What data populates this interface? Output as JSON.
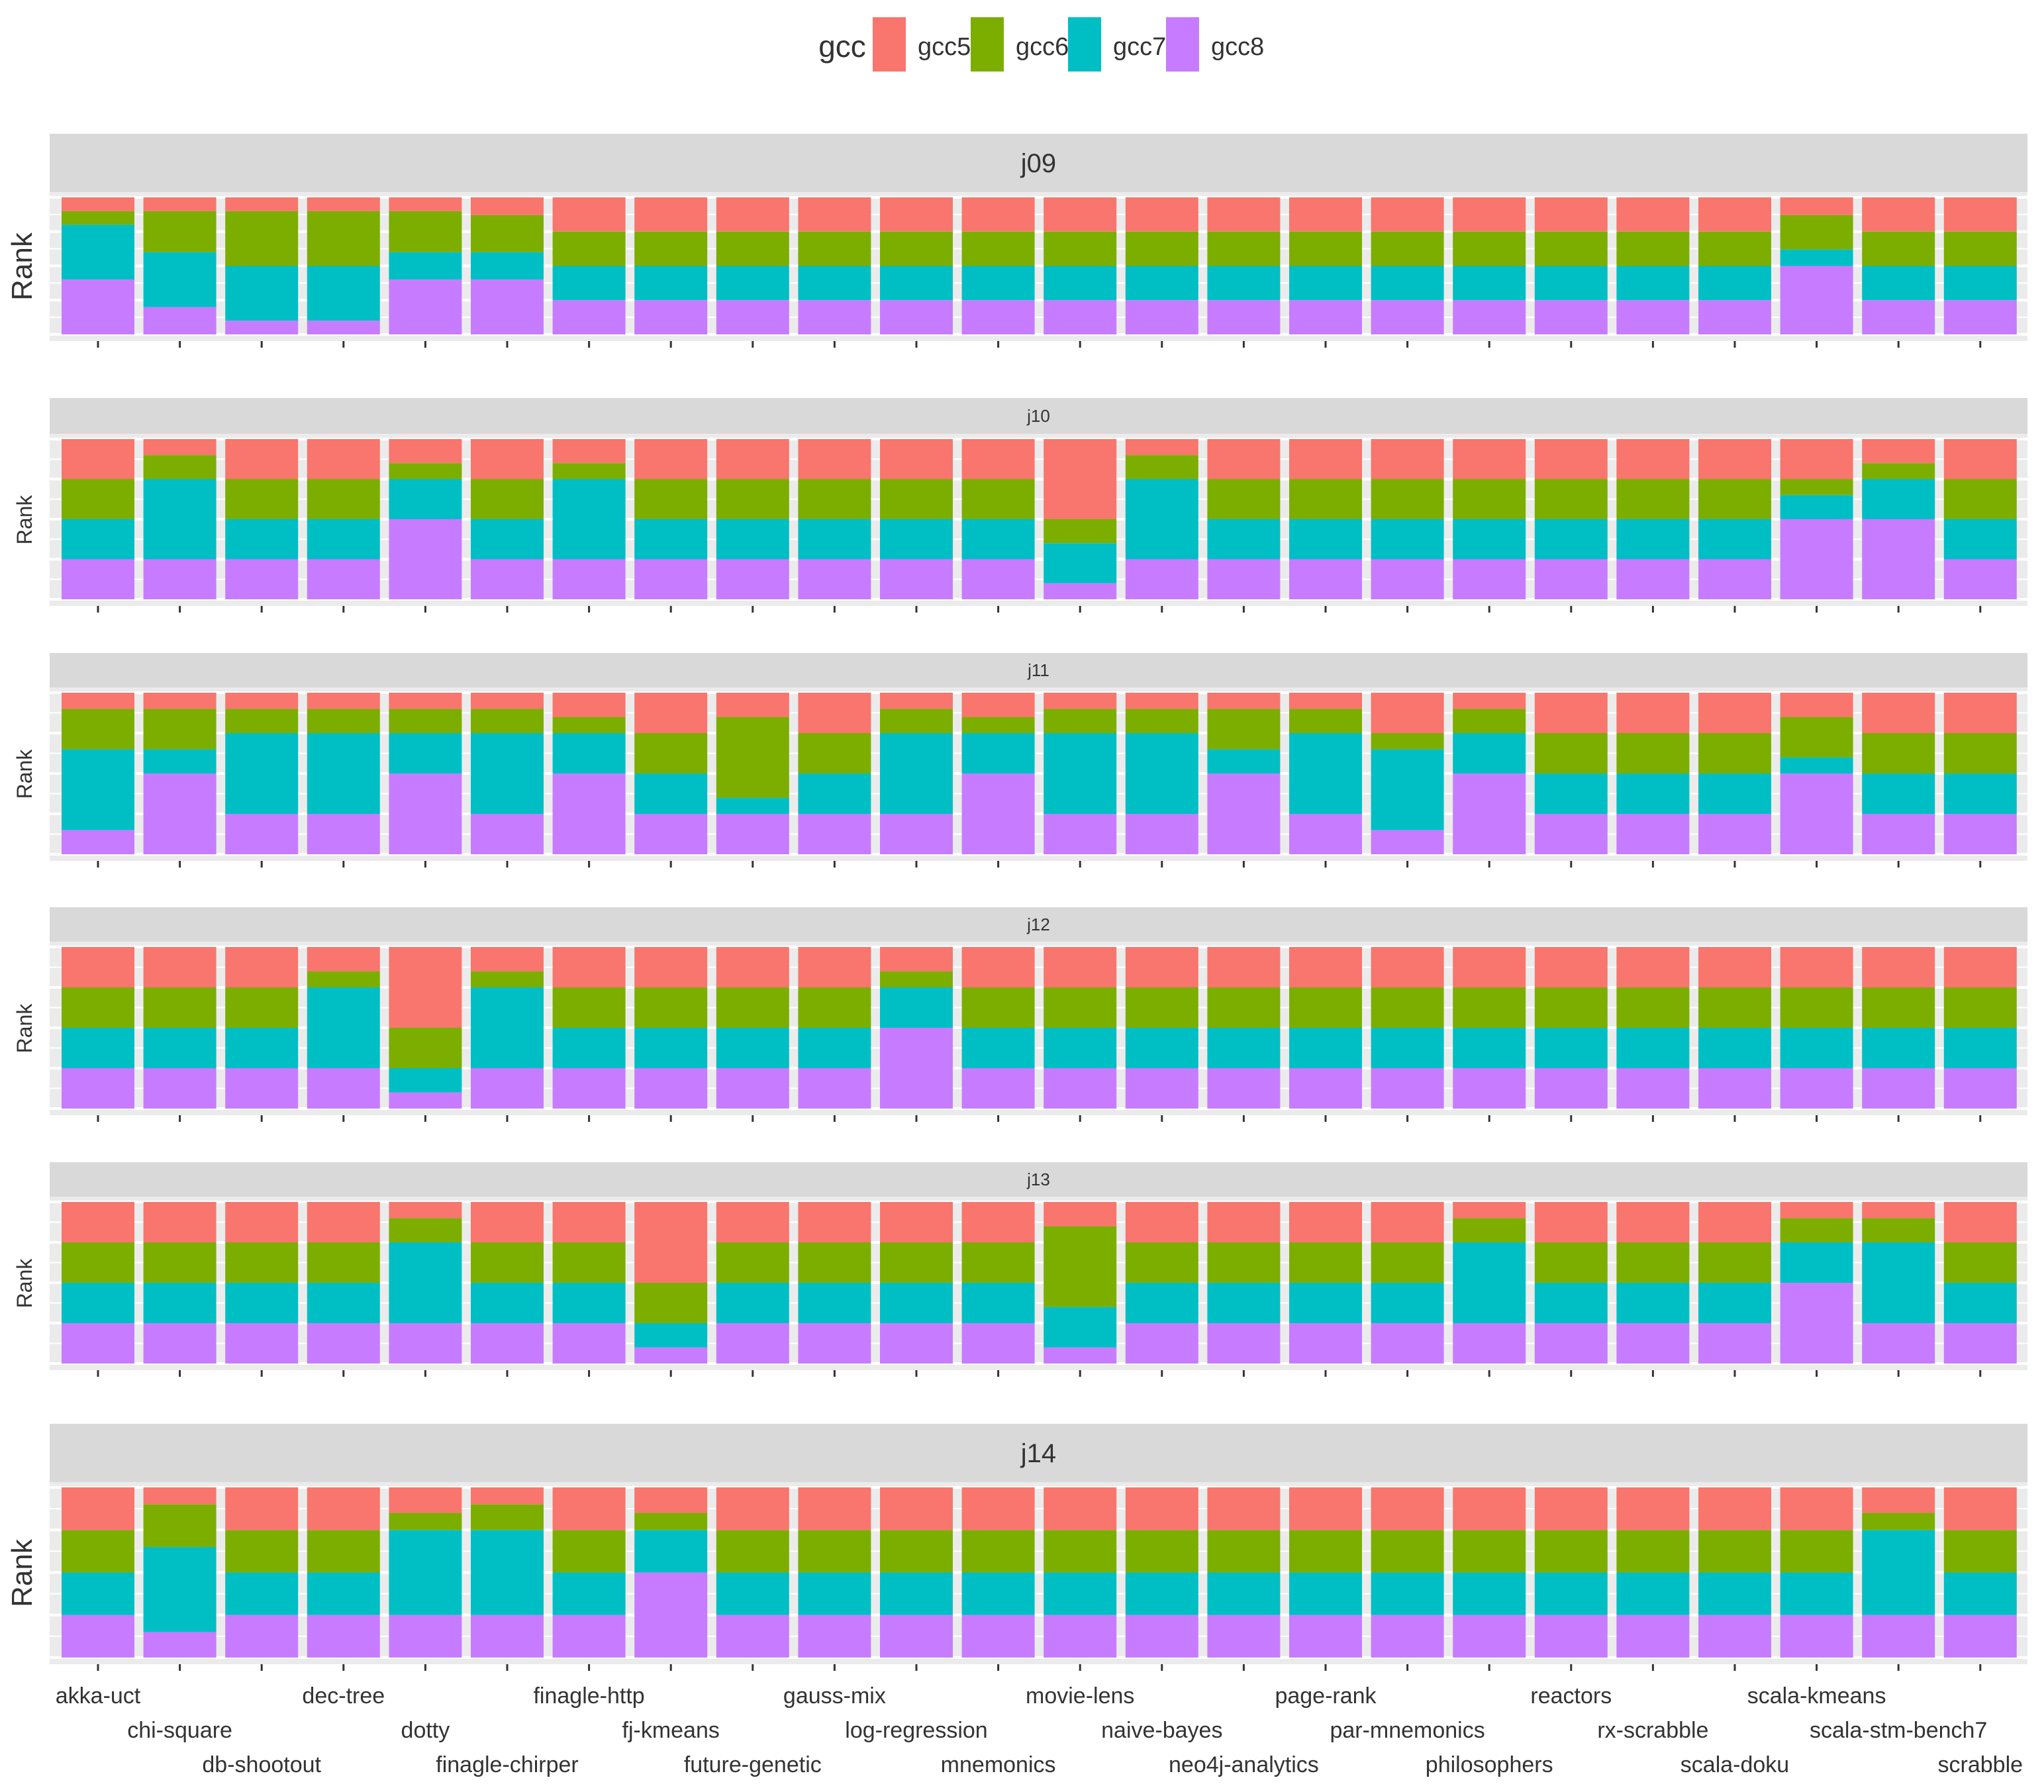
{
  "chart_data": {
    "type": "bar",
    "stacked": true,
    "facet_direction": "rows",
    "legend": {
      "title": "gcc",
      "position": "top"
    },
    "ylabel": "Rank",
    "ylim": [
      0,
      1
    ],
    "grid": true,
    "categories": [
      "akka-uct",
      "chi-square",
      "db-shootout",
      "dec-tree",
      "dotty",
      "finagle-chirper",
      "finagle-http",
      "fj-kmeans",
      "future-genetic",
      "gauss-mix",
      "log-regression",
      "mnemonics",
      "movie-lens",
      "naive-bayes",
      "neo4j-analytics",
      "page-rank",
      "par-mnemonics",
      "philosophers",
      "reactors",
      "rx-scrabble",
      "scala-doku",
      "scala-kmeans",
      "scala-stm-bench7",
      "scrabble"
    ],
    "series": [
      {
        "name": "gcc5",
        "color": "#F8766D"
      },
      {
        "name": "gcc6",
        "color": "#7CAE00"
      },
      {
        "name": "gcc7",
        "color": "#00BFC4"
      },
      {
        "name": "gcc8",
        "color": "#C77CFF"
      }
    ],
    "panels": [
      {
        "title": "j09",
        "values": [
          [
            0.1,
            0.1,
            0.4,
            0.4
          ],
          [
            0.1,
            0.3,
            0.4,
            0.2
          ],
          [
            0.1,
            0.4,
            0.4,
            0.1
          ],
          [
            0.1,
            0.4,
            0.4,
            0.1
          ],
          [
            0.1,
            0.3,
            0.2,
            0.4
          ],
          [
            0.13,
            0.27,
            0.2,
            0.4
          ],
          [
            0.25,
            0.25,
            0.25,
            0.25
          ],
          [
            0.25,
            0.25,
            0.25,
            0.25
          ],
          [
            0.25,
            0.25,
            0.25,
            0.25
          ],
          [
            0.25,
            0.25,
            0.25,
            0.25
          ],
          [
            0.25,
            0.25,
            0.25,
            0.25
          ],
          [
            0.25,
            0.25,
            0.25,
            0.25
          ],
          [
            0.25,
            0.25,
            0.25,
            0.25
          ],
          [
            0.25,
            0.25,
            0.25,
            0.25
          ],
          [
            0.25,
            0.25,
            0.25,
            0.25
          ],
          [
            0.25,
            0.25,
            0.25,
            0.25
          ],
          [
            0.25,
            0.25,
            0.25,
            0.25
          ],
          [
            0.25,
            0.25,
            0.25,
            0.25
          ],
          [
            0.25,
            0.25,
            0.25,
            0.25
          ],
          [
            0.25,
            0.25,
            0.25,
            0.25
          ],
          [
            0.25,
            0.25,
            0.25,
            0.25
          ],
          [
            0.13,
            0.25,
            0.12,
            0.5
          ],
          [
            0.25,
            0.25,
            0.25,
            0.25
          ],
          [
            0.25,
            0.25,
            0.25,
            0.25
          ]
        ]
      },
      {
        "title": "j10",
        "values": [
          [
            0.25,
            0.25,
            0.25,
            0.25
          ],
          [
            0.1,
            0.15,
            0.5,
            0.25
          ],
          [
            0.25,
            0.25,
            0.25,
            0.25
          ],
          [
            0.25,
            0.25,
            0.25,
            0.25
          ],
          [
            0.15,
            0.1,
            0.25,
            0.5
          ],
          [
            0.25,
            0.25,
            0.25,
            0.25
          ],
          [
            0.15,
            0.1,
            0.5,
            0.25
          ],
          [
            0.25,
            0.25,
            0.25,
            0.25
          ],
          [
            0.25,
            0.25,
            0.25,
            0.25
          ],
          [
            0.25,
            0.25,
            0.25,
            0.25
          ],
          [
            0.25,
            0.25,
            0.25,
            0.25
          ],
          [
            0.25,
            0.25,
            0.25,
            0.25
          ],
          [
            0.5,
            0.15,
            0.25,
            0.1
          ],
          [
            0.1,
            0.15,
            0.5,
            0.25
          ],
          [
            0.25,
            0.25,
            0.25,
            0.25
          ],
          [
            0.25,
            0.25,
            0.25,
            0.25
          ],
          [
            0.25,
            0.25,
            0.25,
            0.25
          ],
          [
            0.25,
            0.25,
            0.25,
            0.25
          ],
          [
            0.25,
            0.25,
            0.25,
            0.25
          ],
          [
            0.25,
            0.25,
            0.25,
            0.25
          ],
          [
            0.25,
            0.25,
            0.25,
            0.25
          ],
          [
            0.25,
            0.1,
            0.15,
            0.5
          ],
          [
            0.15,
            0.1,
            0.25,
            0.5
          ],
          [
            0.25,
            0.25,
            0.25,
            0.25
          ]
        ]
      },
      {
        "title": "j11",
        "values": [
          [
            0.1,
            0.25,
            0.5,
            0.15
          ],
          [
            0.1,
            0.25,
            0.15,
            0.5
          ],
          [
            0.1,
            0.15,
            0.5,
            0.25
          ],
          [
            0.1,
            0.15,
            0.5,
            0.25
          ],
          [
            0.1,
            0.15,
            0.25,
            0.5
          ],
          [
            0.1,
            0.15,
            0.5,
            0.25
          ],
          [
            0.15,
            0.1,
            0.25,
            0.5
          ],
          [
            0.25,
            0.25,
            0.25,
            0.25
          ],
          [
            0.15,
            0.5,
            0.1,
            0.25
          ],
          [
            0.25,
            0.25,
            0.25,
            0.25
          ],
          [
            0.1,
            0.15,
            0.5,
            0.25
          ],
          [
            0.15,
            0.1,
            0.25,
            0.5
          ],
          [
            0.1,
            0.15,
            0.5,
            0.25
          ],
          [
            0.1,
            0.15,
            0.5,
            0.25
          ],
          [
            0.1,
            0.25,
            0.15,
            0.5
          ],
          [
            0.1,
            0.15,
            0.5,
            0.25
          ],
          [
            0.25,
            0.1,
            0.5,
            0.15
          ],
          [
            0.1,
            0.15,
            0.25,
            0.5
          ],
          [
            0.25,
            0.25,
            0.25,
            0.25
          ],
          [
            0.25,
            0.25,
            0.25,
            0.25
          ],
          [
            0.25,
            0.25,
            0.25,
            0.25
          ],
          [
            0.15,
            0.25,
            0.1,
            0.5
          ],
          [
            0.25,
            0.25,
            0.25,
            0.25
          ],
          [
            0.25,
            0.25,
            0.25,
            0.25
          ]
        ]
      },
      {
        "title": "j12",
        "values": [
          [
            0.25,
            0.25,
            0.25,
            0.25
          ],
          [
            0.25,
            0.25,
            0.25,
            0.25
          ],
          [
            0.25,
            0.25,
            0.25,
            0.25
          ],
          [
            0.15,
            0.1,
            0.5,
            0.25
          ],
          [
            0.5,
            0.25,
            0.15,
            0.1
          ],
          [
            0.15,
            0.1,
            0.5,
            0.25
          ],
          [
            0.25,
            0.25,
            0.25,
            0.25
          ],
          [
            0.25,
            0.25,
            0.25,
            0.25
          ],
          [
            0.25,
            0.25,
            0.25,
            0.25
          ],
          [
            0.25,
            0.25,
            0.25,
            0.25
          ],
          [
            0.15,
            0.1,
            0.25,
            0.5
          ],
          [
            0.25,
            0.25,
            0.25,
            0.25
          ],
          [
            0.25,
            0.25,
            0.25,
            0.25
          ],
          [
            0.25,
            0.25,
            0.25,
            0.25
          ],
          [
            0.25,
            0.25,
            0.25,
            0.25
          ],
          [
            0.25,
            0.25,
            0.25,
            0.25
          ],
          [
            0.25,
            0.25,
            0.25,
            0.25
          ],
          [
            0.25,
            0.25,
            0.25,
            0.25
          ],
          [
            0.25,
            0.25,
            0.25,
            0.25
          ],
          [
            0.25,
            0.25,
            0.25,
            0.25
          ],
          [
            0.25,
            0.25,
            0.25,
            0.25
          ],
          [
            0.25,
            0.25,
            0.25,
            0.25
          ],
          [
            0.25,
            0.25,
            0.25,
            0.25
          ],
          [
            0.25,
            0.25,
            0.25,
            0.25
          ]
        ]
      },
      {
        "title": "j13",
        "values": [
          [
            0.25,
            0.25,
            0.25,
            0.25
          ],
          [
            0.25,
            0.25,
            0.25,
            0.25
          ],
          [
            0.25,
            0.25,
            0.25,
            0.25
          ],
          [
            0.25,
            0.25,
            0.25,
            0.25
          ],
          [
            0.1,
            0.15,
            0.5,
            0.25
          ],
          [
            0.25,
            0.25,
            0.25,
            0.25
          ],
          [
            0.25,
            0.25,
            0.25,
            0.25
          ],
          [
            0.5,
            0.25,
            0.15,
            0.1
          ],
          [
            0.25,
            0.25,
            0.25,
            0.25
          ],
          [
            0.25,
            0.25,
            0.25,
            0.25
          ],
          [
            0.25,
            0.25,
            0.25,
            0.25
          ],
          [
            0.25,
            0.25,
            0.25,
            0.25
          ],
          [
            0.15,
            0.5,
            0.25,
            0.1
          ],
          [
            0.25,
            0.25,
            0.25,
            0.25
          ],
          [
            0.25,
            0.25,
            0.25,
            0.25
          ],
          [
            0.25,
            0.25,
            0.25,
            0.25
          ],
          [
            0.25,
            0.25,
            0.25,
            0.25
          ],
          [
            0.1,
            0.15,
            0.5,
            0.25
          ],
          [
            0.25,
            0.25,
            0.25,
            0.25
          ],
          [
            0.25,
            0.25,
            0.25,
            0.25
          ],
          [
            0.25,
            0.25,
            0.25,
            0.25
          ],
          [
            0.1,
            0.15,
            0.25,
            0.5
          ],
          [
            0.1,
            0.15,
            0.5,
            0.25
          ],
          [
            0.25,
            0.25,
            0.25,
            0.25
          ]
        ]
      },
      {
        "title": "j14",
        "values": [
          [
            0.25,
            0.25,
            0.25,
            0.25
          ],
          [
            0.1,
            0.25,
            0.5,
            0.15
          ],
          [
            0.25,
            0.25,
            0.25,
            0.25
          ],
          [
            0.25,
            0.25,
            0.25,
            0.25
          ],
          [
            0.15,
            0.1,
            0.5,
            0.25
          ],
          [
            0.1,
            0.15,
            0.5,
            0.25
          ],
          [
            0.25,
            0.25,
            0.25,
            0.25
          ],
          [
            0.15,
            0.1,
            0.25,
            0.5
          ],
          [
            0.25,
            0.25,
            0.25,
            0.25
          ],
          [
            0.25,
            0.25,
            0.25,
            0.25
          ],
          [
            0.25,
            0.25,
            0.25,
            0.25
          ],
          [
            0.25,
            0.25,
            0.25,
            0.25
          ],
          [
            0.25,
            0.25,
            0.25,
            0.25
          ],
          [
            0.25,
            0.25,
            0.25,
            0.25
          ],
          [
            0.25,
            0.25,
            0.25,
            0.25
          ],
          [
            0.25,
            0.25,
            0.25,
            0.25
          ],
          [
            0.25,
            0.25,
            0.25,
            0.25
          ],
          [
            0.25,
            0.25,
            0.25,
            0.25
          ],
          [
            0.25,
            0.25,
            0.25,
            0.25
          ],
          [
            0.25,
            0.25,
            0.25,
            0.25
          ],
          [
            0.25,
            0.25,
            0.25,
            0.25
          ],
          [
            0.25,
            0.25,
            0.25,
            0.25
          ],
          [
            0.15,
            0.1,
            0.5,
            0.25
          ],
          [
            0.25,
            0.25,
            0.25,
            0.25
          ]
        ]
      }
    ]
  }
}
